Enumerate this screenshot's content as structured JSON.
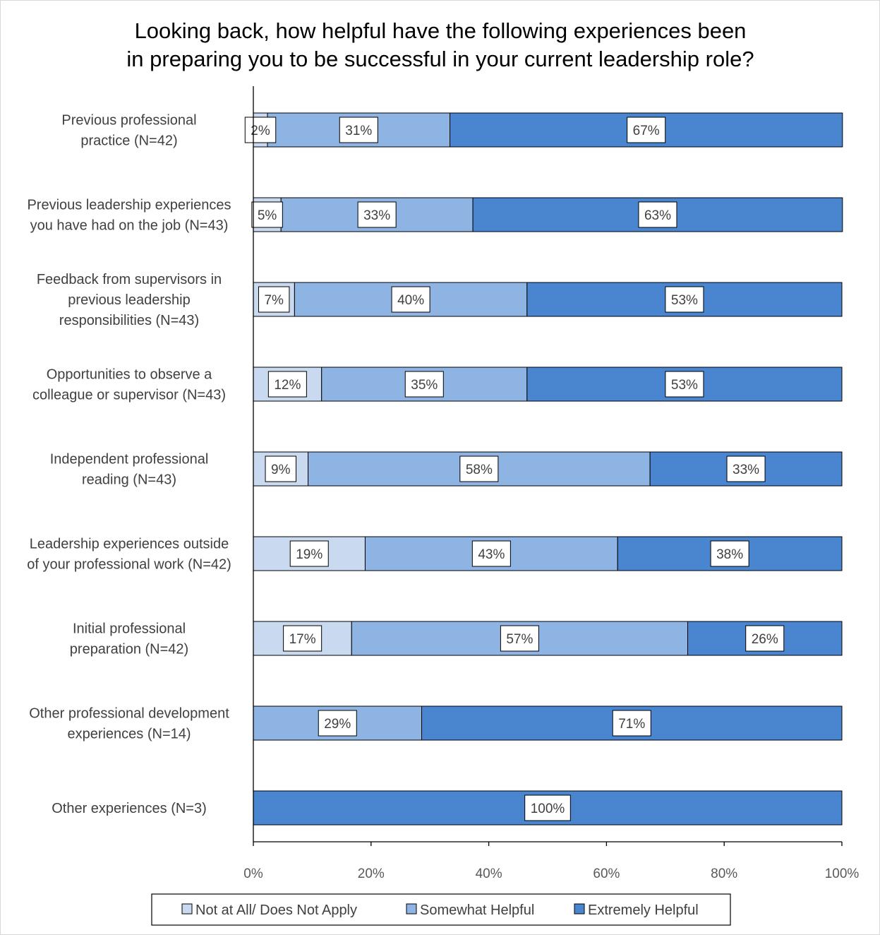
{
  "chart_data": {
    "type": "bar",
    "orientation": "horizontal",
    "stacked": "percent",
    "title_lines": [
      "Looking back, how helpful have the following experiences been",
      "in preparing you to be successful in your current leadership role?"
    ],
    "categories": [
      [
        "Previous professional",
        "practice (N=42)"
      ],
      [
        "Previous leadership experiences",
        "you have had on the job (N=43)"
      ],
      [
        "Feedback from supervisors in",
        "previous leadership",
        "responsibilities (N=43)"
      ],
      [
        "Opportunities to observe a",
        "colleague or supervisor (N=43)"
      ],
      [
        "Independent professional",
        "reading (N=43)"
      ],
      [
        "Leadership experiences outside",
        "of your professional work (N=42)"
      ],
      [
        "Initial professional",
        "preparation (N=42)"
      ],
      [
        "Other professional development",
        "experiences (N=14)"
      ],
      [
        "Other experiences (N=3)"
      ]
    ],
    "series": [
      {
        "name": "Not at All/ Does Not Apply",
        "color": "#c9d9f0",
        "values": [
          2.4,
          4.7,
          7.0,
          11.6,
          9.3,
          19.0,
          16.7,
          0,
          0
        ],
        "labels": [
          "2%",
          "5%",
          "7%",
          "12%",
          "9%",
          "19%",
          "17%",
          "",
          ""
        ]
      },
      {
        "name": "Somewhat Helpful",
        "color": "#8eb4e3",
        "values": [
          31.0,
          32.6,
          39.5,
          34.9,
          58.1,
          42.9,
          57.1,
          28.6,
          0
        ],
        "labels": [
          "31%",
          "33%",
          "40%",
          "35%",
          "58%",
          "43%",
          "57%",
          "29%",
          ""
        ]
      },
      {
        "name": "Extremely Helpful",
        "color": "#4a86d0",
        "values": [
          66.7,
          62.8,
          53.5,
          53.5,
          32.6,
          38.1,
          26.2,
          71.4,
          100
        ],
        "labels": [
          "67%",
          "63%",
          "53%",
          "53%",
          "33%",
          "38%",
          "26%",
          "71%",
          "100%"
        ]
      }
    ],
    "x_ticks": [
      "0%",
      "20%",
      "40%",
      "60%",
      "80%",
      "100%"
    ],
    "xlim": [
      0,
      100
    ],
    "legend_position": "bottom",
    "grid": false
  }
}
